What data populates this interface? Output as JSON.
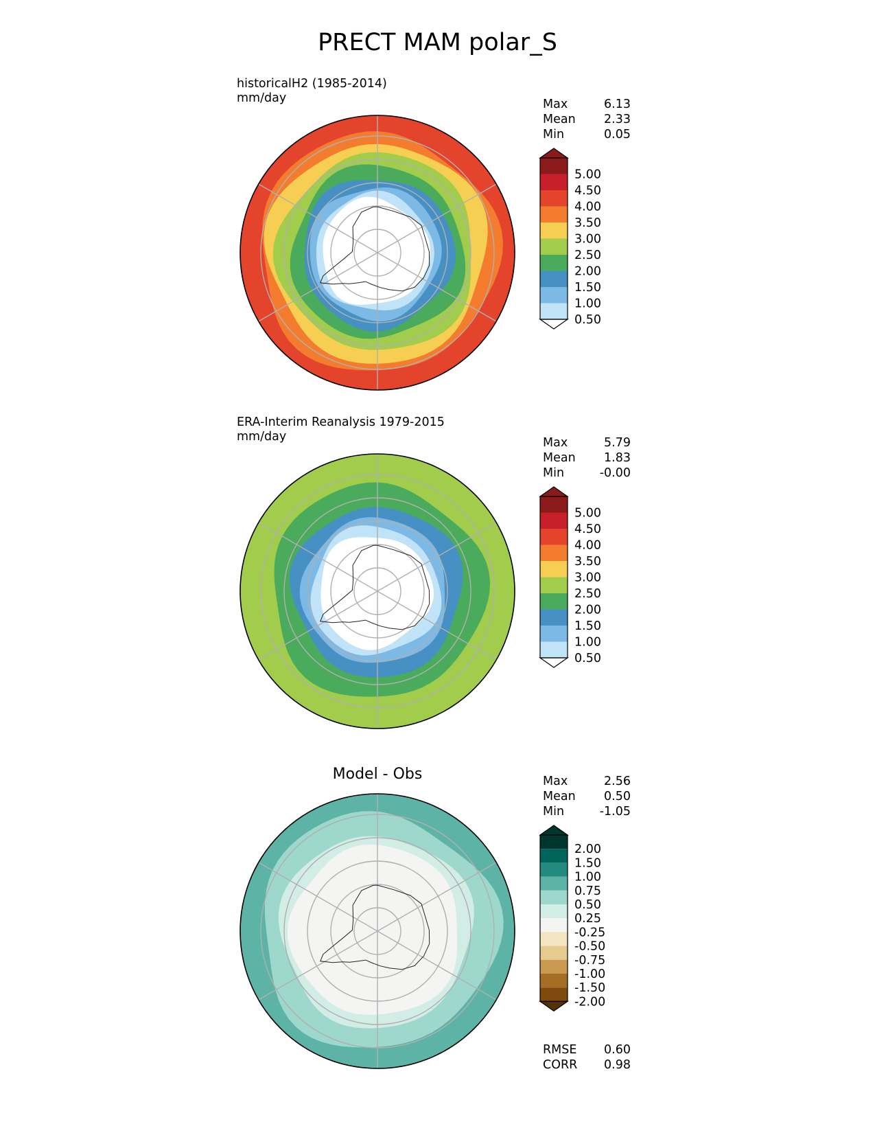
{
  "title": "PRECT MAM polar_S",
  "chart_data": [
    {
      "type": "heatmap",
      "projection": "south-polar-stereographic",
      "title": "historicalH2 (1985-2014)",
      "units": "mm/day",
      "stats": {
        "max": "6.13",
        "mean": "2.33",
        "min": "0.05"
      },
      "colorbar": {
        "labels": [
          "5.00",
          "4.50",
          "4.00",
          "3.50",
          "3.00",
          "2.50",
          "2.00",
          "1.50",
          "1.00",
          "0.50"
        ],
        "colors": [
          "#8b1a1a",
          "#c8202a",
          "#e4432c",
          "#f47c2e",
          "#f6cf52",
          "#a2cc4c",
          "#4aab5c",
          "#4690c4",
          "#7db9e5",
          "#c0e3f7",
          "#ffffff"
        ],
        "extend": "both"
      },
      "rings": [
        {
          "value": 0.05,
          "color": "#e4432c"
        },
        {
          "value": 0.13,
          "color": "#f47c2e"
        },
        {
          "value": 0.2,
          "color": "#f6cf52"
        },
        {
          "value": 0.28,
          "color": "#a2cc4c"
        },
        {
          "value": 0.37,
          "color": "#4aab5c"
        },
        {
          "value": 0.45,
          "color": "#4690c4"
        },
        {
          "value": 0.52,
          "color": "#7db9e5"
        },
        {
          "value": 0.57,
          "color": "#c0e3f7"
        },
        {
          "value": 0.61,
          "color": "#ffffff"
        }
      ]
    },
    {
      "type": "heatmap",
      "projection": "south-polar-stereographic",
      "title": "ERA-Interim Reanalysis 1979-2015",
      "units": "mm/day",
      "stats": {
        "max": "5.79",
        "mean": "1.83",
        "min": "-0.00"
      },
      "colorbar": {
        "labels": [
          "5.00",
          "4.50",
          "4.00",
          "3.50",
          "3.00",
          "2.50",
          "2.00",
          "1.50",
          "1.00",
          "0.50"
        ],
        "colors": [
          "#8b1a1a",
          "#c8202a",
          "#e4432c",
          "#f47c2e",
          "#f6cf52",
          "#a2cc4c",
          "#4aab5c",
          "#4690c4",
          "#7db9e5",
          "#c0e3f7",
          "#ffffff"
        ],
        "extend": "both"
      },
      "rings": [
        {
          "value": 0.08,
          "color": "#a2cc4c"
        },
        {
          "value": 0.22,
          "color": "#4aab5c"
        },
        {
          "value": 0.38,
          "color": "#4690c4"
        },
        {
          "value": 0.47,
          "color": "#7db9e5"
        },
        {
          "value": 0.53,
          "color": "#c0e3f7"
        },
        {
          "value": 0.59,
          "color": "#ffffff"
        }
      ]
    },
    {
      "type": "heatmap",
      "projection": "south-polar-stereographic",
      "title": "Model - Obs",
      "units": "",
      "stats": {
        "max": "2.56",
        "mean": "0.50",
        "min": "-1.05"
      },
      "metrics": {
        "rmse": "0.60",
        "corr": "0.98"
      },
      "colorbar": {
        "labels": [
          "2.00",
          "1.50",
          "1.00",
          "0.75",
          "0.50",
          "0.25",
          "-0.25",
          "-0.50",
          "-0.75",
          "-1.00",
          "-1.50",
          "-2.00"
        ],
        "colors": [
          "#01362f",
          "#00645a",
          "#238a7f",
          "#5db3a6",
          "#9ed8cc",
          "#d2ece6",
          "#f4f4f2",
          "#f5e6c3",
          "#e5cb8e",
          "#c99a50",
          "#a56d24",
          "#7e4a0e",
          "#553106"
        ],
        "extend": "both"
      },
      "rings": [
        {
          "value": 0.05,
          "color": "#5db3a6"
        },
        {
          "value": 0.14,
          "color": "#9ed8cc"
        },
        {
          "value": 0.3,
          "color": "#d2ece6"
        },
        {
          "value": 0.38,
          "color": "#f4f4f2"
        }
      ]
    }
  ],
  "labels": {
    "max": "Max",
    "mean": "Mean",
    "min": "Min",
    "rmse": "RMSE",
    "corr": "CORR"
  }
}
